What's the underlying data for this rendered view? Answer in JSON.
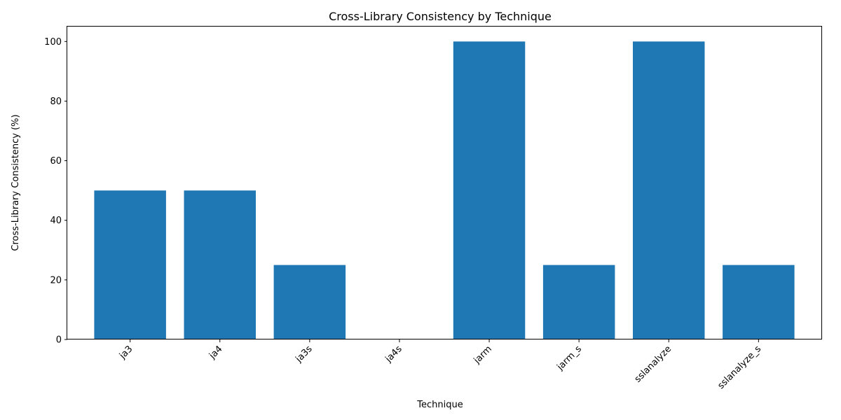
{
  "chart_data": {
    "type": "bar",
    "title": "Cross-Library Consistency by Technique",
    "xlabel": "Technique",
    "ylabel": "Cross-Library Consistency (%)",
    "categories": [
      "ja3",
      "ja4",
      "ja3s",
      "ja4s",
      "jarm",
      "jarm_s",
      "sslanalyze",
      "sslanalyze_s"
    ],
    "values": [
      50,
      50,
      25,
      0,
      100,
      25,
      100,
      25
    ],
    "ylim": [
      0,
      105
    ],
    "yticks": [
      0,
      20,
      40,
      60,
      80,
      100
    ],
    "ytick_labels": [
      "0",
      "20",
      "40",
      "60",
      "80",
      "100"
    ],
    "bar_color": "#1f77b4",
    "grid": false,
    "legend": "none"
  }
}
